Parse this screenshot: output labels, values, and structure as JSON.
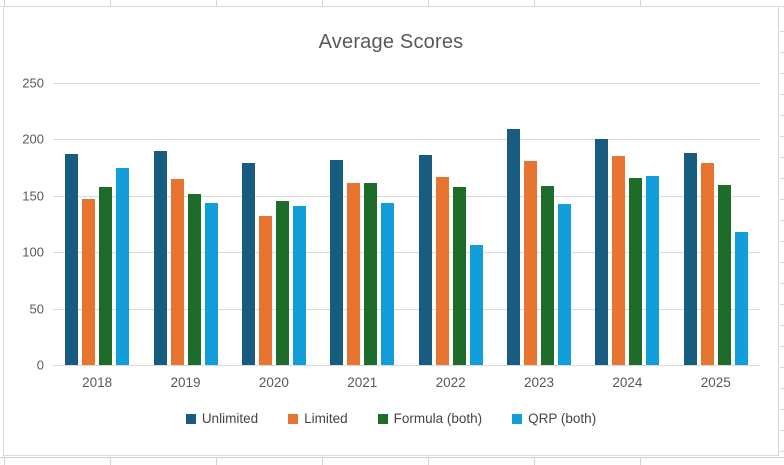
{
  "chart_data": {
    "type": "bar",
    "title": "Average Scores",
    "categories": [
      "2018",
      "2019",
      "2020",
      "2021",
      "2022",
      "2023",
      "2024",
      "2025"
    ],
    "series": [
      {
        "name": "Unlimited",
        "color": "#185C7F",
        "values": [
          187,
          190,
          179,
          182,
          186,
          209,
          200,
          188
        ]
      },
      {
        "name": "Limited",
        "color": "#E7742F",
        "values": [
          147,
          165,
          132,
          161,
          167,
          181,
          185,
          179
        ]
      },
      {
        "name": "Formula (both)",
        "color": "#1E6C29",
        "values": [
          158,
          152,
          145,
          161,
          158,
          159,
          166,
          160
        ]
      },
      {
        "name": "QRP (both)",
        "color": "#119EDA",
        "values": [
          175,
          144,
          141,
          144,
          106,
          143,
          168,
          118
        ]
      }
    ],
    "ylim": [
      0,
      250
    ],
    "yticks": [
      0,
      50,
      100,
      150,
      200,
      250
    ],
    "grid": true,
    "legend_position": "bottom",
    "colors": {
      "gridline": "#d9d9d9",
      "title_text": "#595959",
      "axis_text": "#595959",
      "legend_text": "#454545"
    }
  }
}
